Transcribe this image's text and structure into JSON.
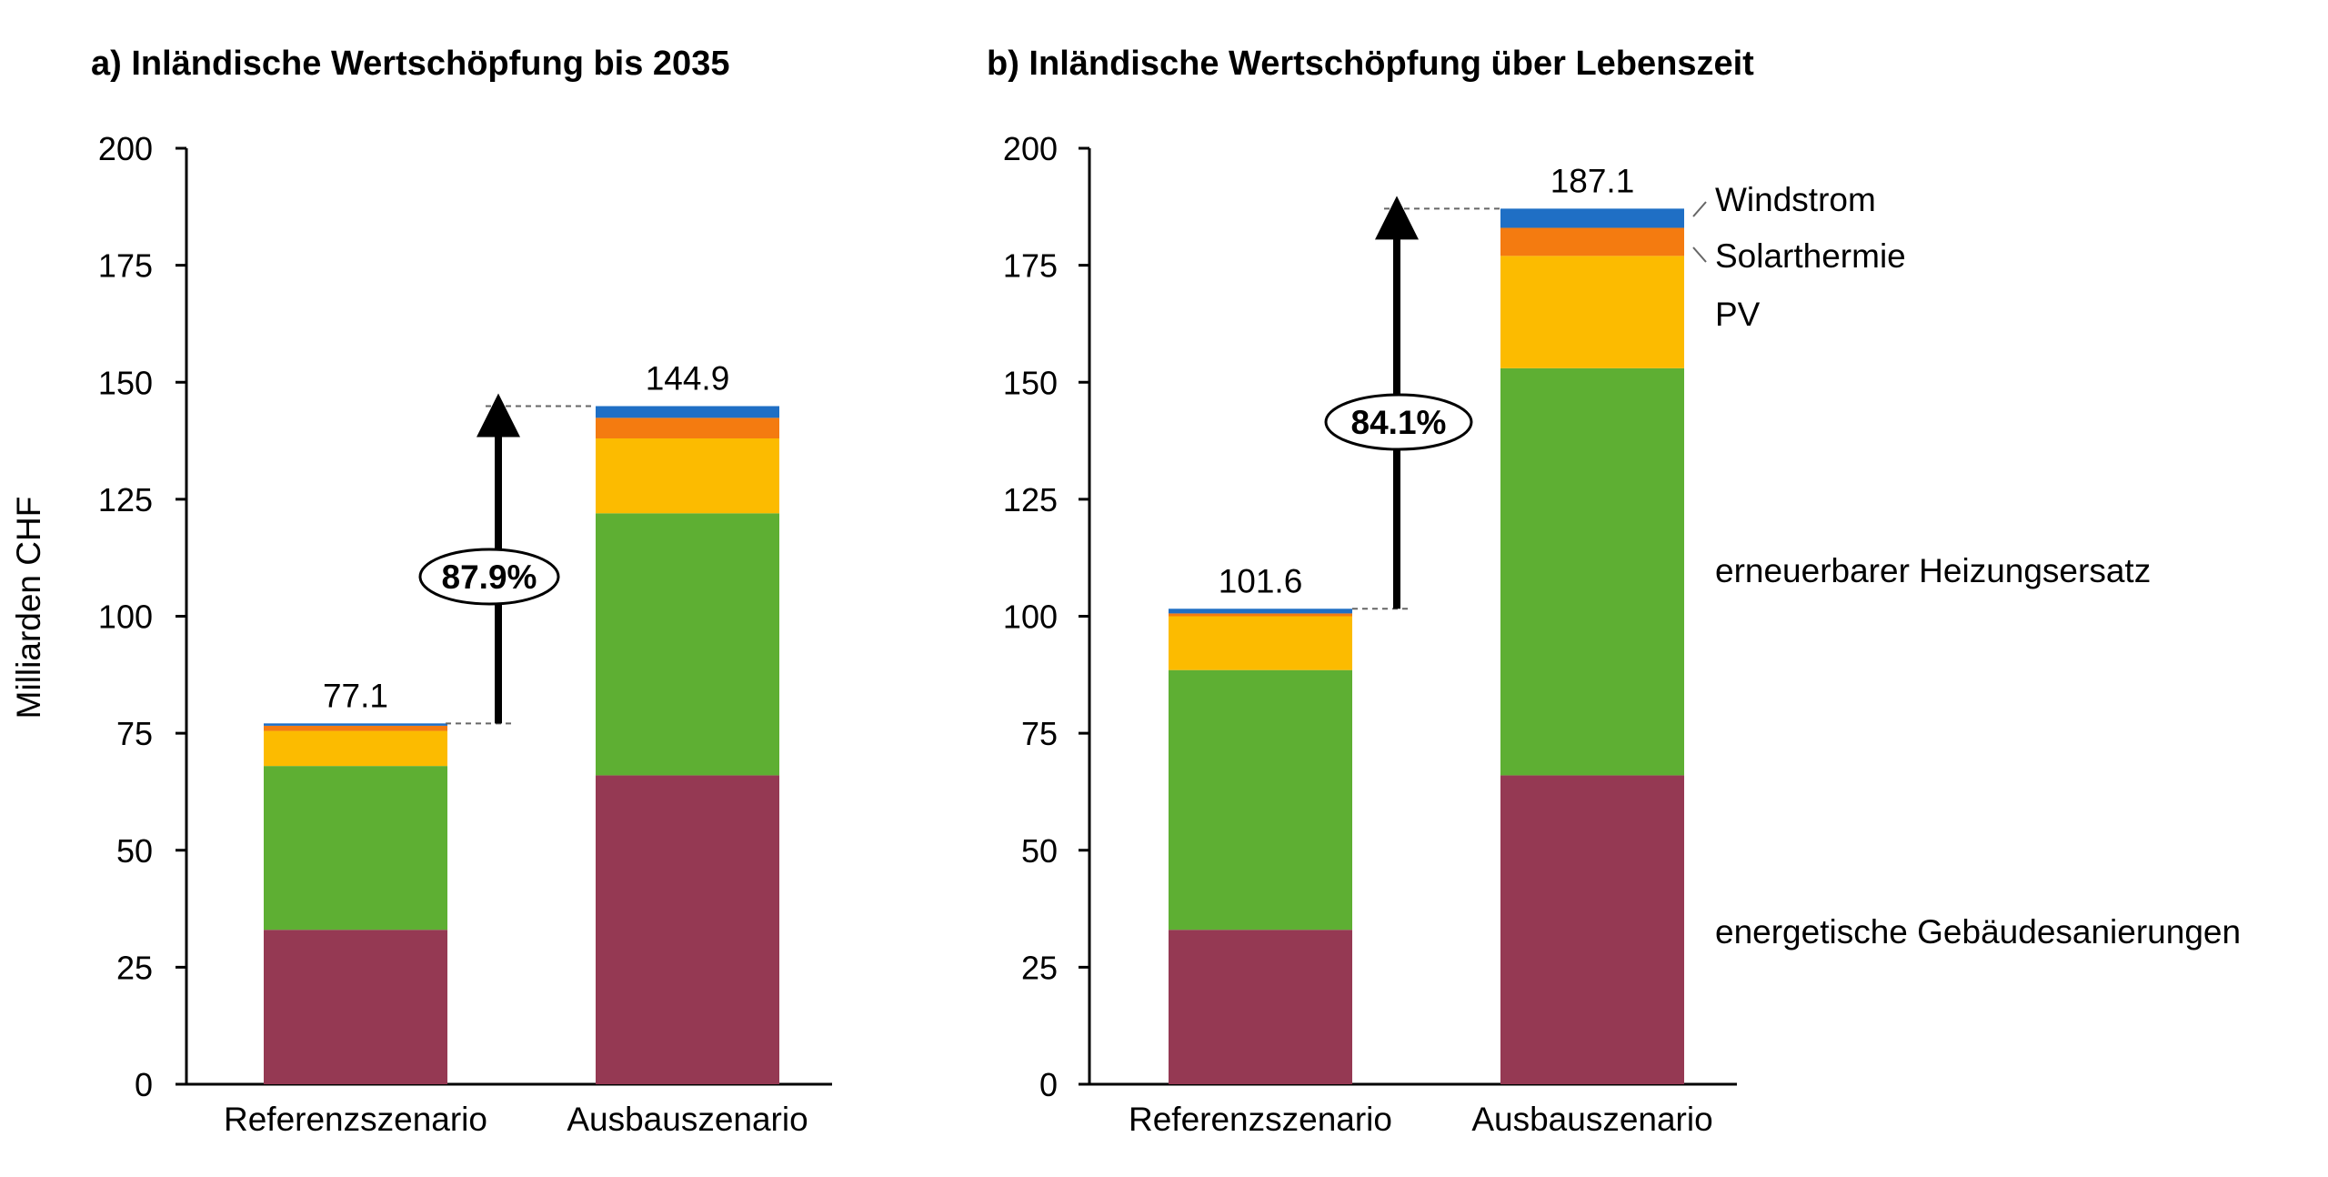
{
  "colors": {
    "energetische_gebaeudesanierungen": "#953953",
    "erneuerbarer_heizungsersatz": "#5eaf33",
    "pv": "#fcbb00",
    "solarthermie": "#f47b10",
    "windstrom": "#1f6fc5",
    "axis": "#000000",
    "leader": "#666666"
  },
  "ylabel": "Milliarden CHF",
  "legend": [
    "Windstrom",
    "Solarthermie",
    "PV",
    "erneuerbarer Heizungsersatz",
    "energetische Gebäudesanierungen"
  ],
  "chart_data": [
    {
      "type": "bar",
      "stacked": true,
      "title": "a) Inländische Wertschöpfung bis 2035",
      "ylabel": "Milliarden CHF",
      "ylim": [
        0,
        200
      ],
      "yticks": [
        "0",
        "25",
        "50",
        "75",
        "100",
        "125",
        "150",
        "175",
        "200"
      ],
      "categories": [
        "Referenzszenario",
        "Ausbauszenario"
      ],
      "totals": [
        "77.1",
        "144.9"
      ],
      "series": [
        {
          "name": "energetische Gebäudesanierungen",
          "values": [
            33,
            66
          ]
        },
        {
          "name": "erneuerbarer Heizungsersatz",
          "values": [
            35,
            56
          ]
        },
        {
          "name": "PV",
          "values": [
            7.5,
            16
          ]
        },
        {
          "name": "Solarthermie",
          "values": [
            1.1,
            4.4
          ]
        },
        {
          "name": "Windstrom",
          "values": [
            0.5,
            2.5
          ]
        }
      ],
      "increase_label": "87.9%"
    },
    {
      "type": "bar",
      "stacked": true,
      "title": "b) Inländische Wertschöpfung über Lebenszeit",
      "ylim": [
        0,
        200
      ],
      "yticks": [
        "0",
        "25",
        "50",
        "75",
        "100",
        "125",
        "150",
        "175",
        "200"
      ],
      "categories": [
        "Referenzszenario",
        "Ausbauszenario"
      ],
      "totals": [
        "101.6",
        "187.1"
      ],
      "series": [
        {
          "name": "energetische Gebäudesanierungen",
          "values": [
            33,
            66
          ]
        },
        {
          "name": "erneuerbarer Heizungsersatz",
          "values": [
            55.5,
            87
          ]
        },
        {
          "name": "PV",
          "values": [
            11.5,
            24
          ]
        },
        {
          "name": "Solarthermie",
          "values": [
            0.6,
            6
          ]
        },
        {
          "name": "Windstrom",
          "values": [
            1.0,
            4.1
          ]
        }
      ],
      "increase_label": "84.1%"
    }
  ]
}
